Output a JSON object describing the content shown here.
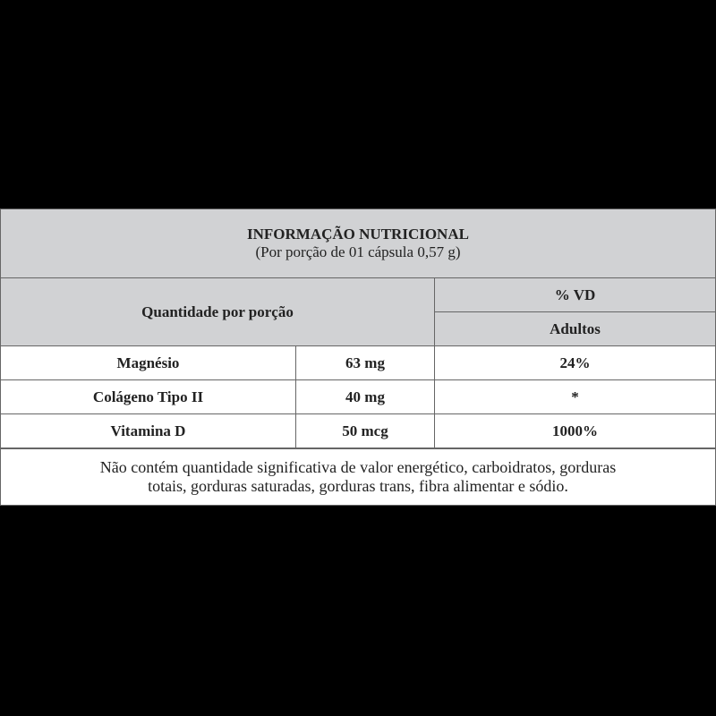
{
  "header": {
    "title": "INFORMAÇÃO NUTRICIONAL",
    "subtitle": "(Por porção de 01 cápsula 0,57 g)"
  },
  "table": {
    "columns": {
      "quantity": "Quantidade por porção",
      "vd": "% VD",
      "group": "Adultos"
    },
    "rows": [
      [
        "Magnésio",
        "63 mg",
        "24%"
      ],
      [
        "Colágeno Tipo II",
        "40 mg",
        "*"
      ],
      [
        "Vitamina D",
        "50 mcg",
        "1000%"
      ]
    ]
  },
  "footer": [
    "Não contém quantidade significativa de valor energético, carboidratos, gorduras",
    "totais, gorduras saturadas, gorduras trans, fibra alimentar e sódio."
  ]
}
